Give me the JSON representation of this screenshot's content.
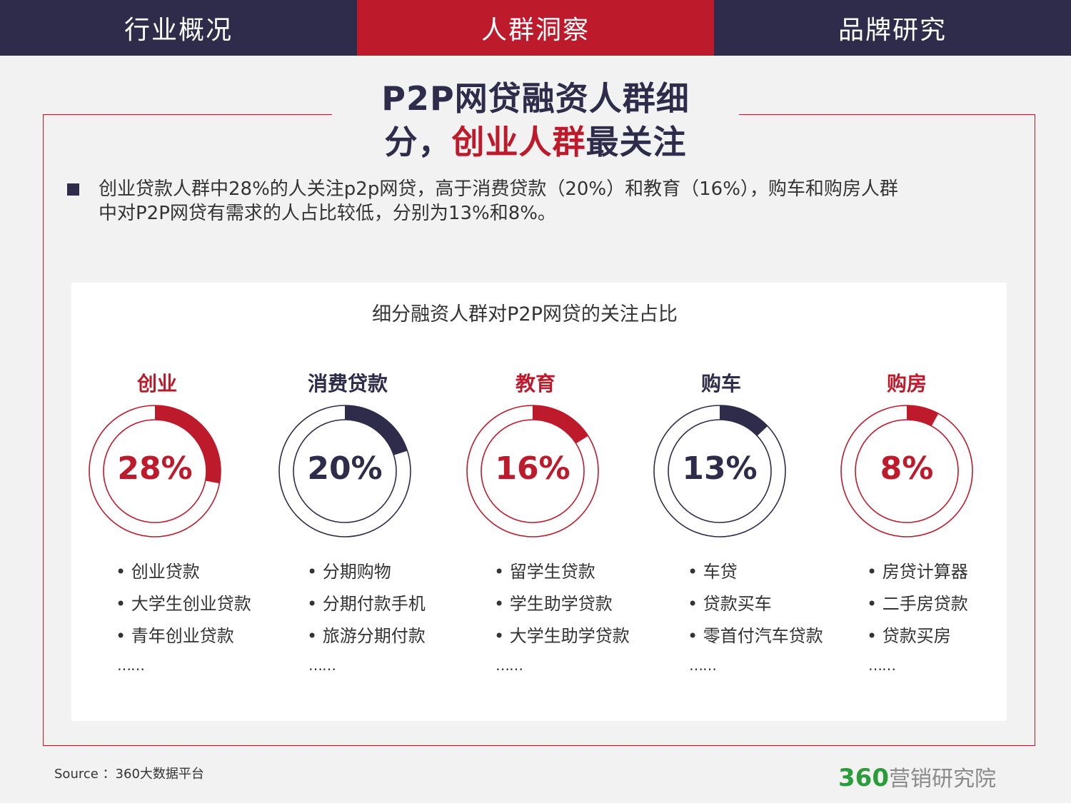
{
  "nav": {
    "tabs": [
      {
        "label": "行业概况",
        "active": false
      },
      {
        "label": "人群洞察",
        "active": true
      },
      {
        "label": "品牌研究",
        "active": false
      }
    ]
  },
  "title": {
    "line1": "P2P网贷融资人群细",
    "line2_pre": "分，",
    "line2_hl": "创业人群",
    "line2_post": "最关注"
  },
  "bullet": {
    "line1": "创业贷款人群中28%的人关注p2p网贷，高于消费贷款（20%）和教育（16%），购车和购房人群",
    "line2": "中对P2P网贷有需求的人占比较低，分别为13%和8%。"
  },
  "colors": {
    "red": "#bd1a2b",
    "navy": "#2e2c4a"
  },
  "chart_data": {
    "type": "donut",
    "title": "细分融资人群对P2P网贷的关注占比",
    "categories": [
      "创业",
      "消费贷款",
      "教育",
      "购车",
      "购房"
    ],
    "values": [
      28,
      20,
      16,
      13,
      8
    ],
    "value_labels": [
      "28%",
      "20%",
      "16%",
      "13%",
      "8%"
    ],
    "colors": [
      "#bd1a2b",
      "#2e2c4a",
      "#bd1a2b",
      "#2e2c4a",
      "#bd1a2b"
    ],
    "keywords": [
      [
        "创业贷款",
        "大学生创业贷款",
        "青年创业贷款"
      ],
      [
        "分期购物",
        "分期付款手机",
        "旅游分期付款"
      ],
      [
        "留学生贷款",
        "学生助学贷款",
        "大学生助学贷款"
      ],
      [
        "车贷",
        "贷款买车",
        "零首付汽车贷款"
      ],
      [
        "房贷计算器",
        "二手房贷款",
        "贷款买房"
      ]
    ],
    "more": "……"
  },
  "footer": {
    "source": "Source ：360大数据平台",
    "brand_num": "360",
    "brand_text": "营销研究院"
  }
}
